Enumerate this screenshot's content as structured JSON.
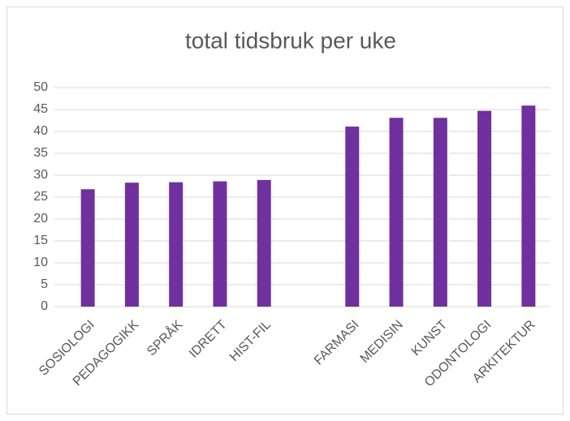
{
  "chart_data": {
    "type": "bar",
    "title": "total tidsbruk per uke",
    "categories": [
      "SOSIOLOGI",
      "PEDAGOGIKK",
      "SPRÅK",
      "IDRETT",
      "HIST-FIL",
      null,
      "FARMASI",
      "MEDISIN",
      "KUNST",
      "ODONTOLOGI",
      "ARKITEKTUR"
    ],
    "values": [
      26.8,
      28.3,
      28.4,
      28.6,
      28.9,
      null,
      41.1,
      43.1,
      43.1,
      44.7,
      45.9
    ],
    "color": "#7030a0",
    "ylim": [
      0,
      50
    ],
    "yticks": [
      0,
      5,
      10,
      15,
      20,
      25,
      30,
      35,
      40,
      45,
      50
    ],
    "grid": true
  }
}
